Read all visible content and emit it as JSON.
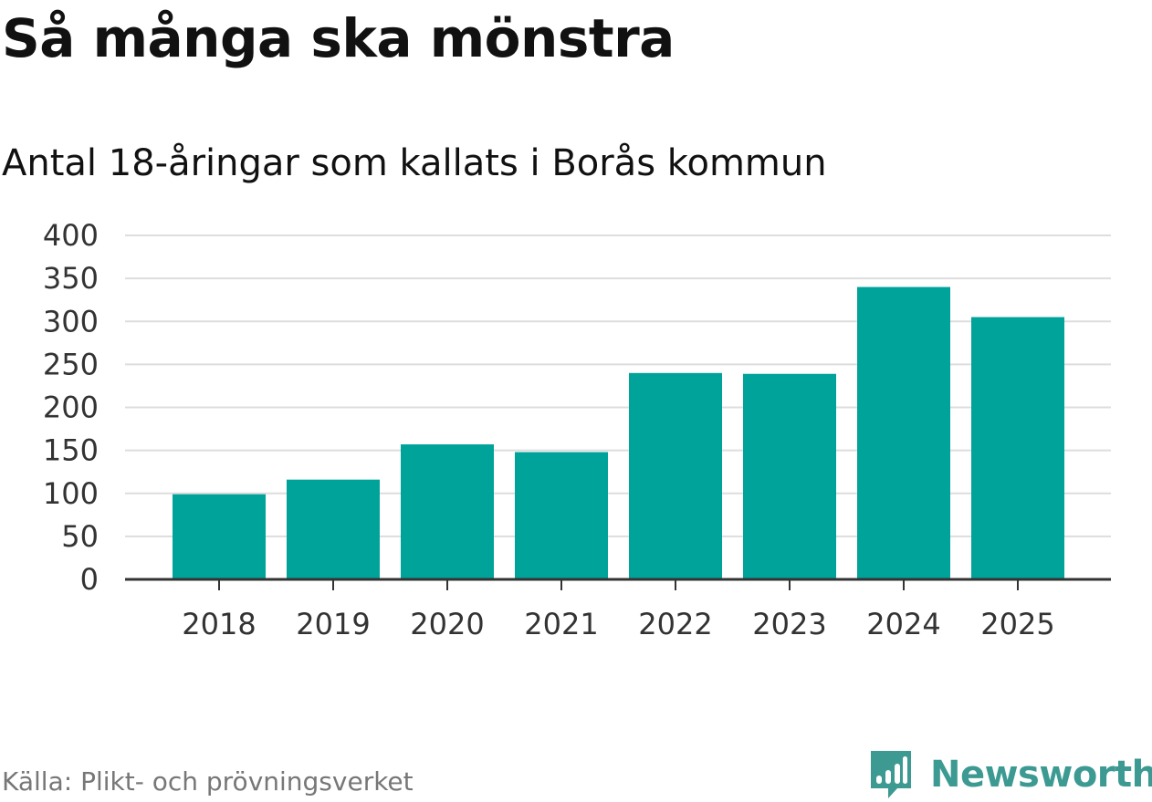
{
  "header": {
    "title": "Så många ska mönstra",
    "subtitle": "Antal 18-åringar som kallats i Borås kommun"
  },
  "footer": {
    "source": "Källa: Plikt- och prövningsverket",
    "brand": "Newsworthy",
    "brand_icon": "newsworthy-logo-icon"
  },
  "colors": {
    "bar": "#00a39a",
    "grid": "#dddddd",
    "axis": "#333333",
    "brand": "#3c9a92"
  },
  "chart_data": {
    "type": "bar",
    "title": "Så många ska mönstra",
    "subtitle": "Antal 18-åringar som kallats i Borås kommun",
    "categories": [
      "2018",
      "2019",
      "2020",
      "2021",
      "2022",
      "2023",
      "2024",
      "2025"
    ],
    "values": [
      99,
      116,
      157,
      148,
      240,
      239,
      340,
      305
    ],
    "xlabel": "",
    "ylabel": "",
    "ylim": [
      0,
      400
    ],
    "yticks": [
      0,
      50,
      100,
      150,
      200,
      250,
      300,
      350,
      400
    ],
    "grid": true,
    "legend": "none"
  }
}
